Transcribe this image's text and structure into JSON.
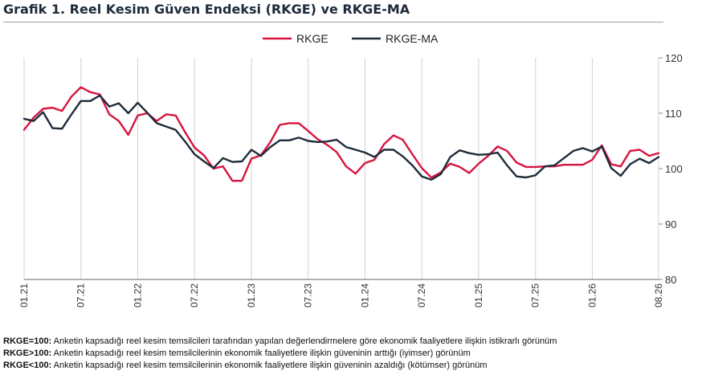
{
  "title": "Grafik 1. Reel Kesim Güven Endeksi (RKGE) ve RKGE-MA",
  "chart_data": {
    "type": "line",
    "x_ticks": [
      "01.21",
      "07.21",
      "01.22",
      "07.22",
      "01.23",
      "07.23",
      "01.24",
      "07.24",
      "01.25",
      "07.25",
      "01.26",
      "08.26"
    ],
    "ylim": [
      80,
      120
    ],
    "y_ticks": [
      80,
      90,
      100,
      110,
      120
    ],
    "y_axis_position": "right",
    "grid": "vertical",
    "legend_position": "top-center",
    "series": [
      {
        "name": "RKGE",
        "color": "#d7143f",
        "values": [
          107.0,
          109.2,
          110.8,
          111.0,
          110.4,
          113.0,
          114.7,
          113.8,
          113.4,
          109.8,
          108.6,
          106.1,
          109.6,
          110.0,
          108.6,
          109.8,
          109.6,
          106.6,
          103.8,
          102.4,
          100.0,
          100.4,
          97.8,
          97.8,
          101.8,
          102.4,
          104.8,
          107.9,
          108.2,
          108.2,
          106.8,
          105.3,
          104.3,
          103.0,
          100.4,
          99.1,
          101.0,
          101.6,
          104.4,
          106.0,
          105.2,
          102.6,
          100.1,
          98.4,
          99.3,
          100.9,
          100.3,
          99.2,
          100.9,
          102.3,
          104.0,
          103.2,
          101.1,
          100.3,
          100.3,
          100.4,
          100.4,
          100.7,
          100.7,
          100.7,
          101.6,
          104.2,
          100.8,
          100.4,
          103.2,
          103.4,
          102.3,
          102.8
        ]
      },
      {
        "name": "RKGE-MA",
        "color": "#1e2b3a",
        "values": [
          109.0,
          108.6,
          110.2,
          107.3,
          107.2,
          109.8,
          112.2,
          112.2,
          113.2,
          111.2,
          111.8,
          110.0,
          111.9,
          110.1,
          108.2,
          107.6,
          107.0,
          104.9,
          102.6,
          101.3,
          100.1,
          101.9,
          101.2,
          101.3,
          103.4,
          102.3,
          103.9,
          105.1,
          105.1,
          105.6,
          105.0,
          104.8,
          104.9,
          105.2,
          103.9,
          103.4,
          102.9,
          102.1,
          103.4,
          103.4,
          102.2,
          100.6,
          98.6,
          98.0,
          99.0,
          102.1,
          103.3,
          102.8,
          102.5,
          102.6,
          102.9,
          100.6,
          98.6,
          98.4,
          98.8,
          100.4,
          100.6,
          101.9,
          103.2,
          103.7,
          103.1,
          104.0,
          100.1,
          98.7,
          100.8,
          101.8,
          101.0,
          102.1
        ]
      }
    ]
  },
  "notes": [
    {
      "label": "RKGE=100:",
      "text": " Anketin kapsadığı reel kesim temsilcileri tarafından yapılan değerlendirmelere göre ekonomik faaliyetlere ilişkin istikrarlı görünüm"
    },
    {
      "label": "RKGE>100:",
      "text": " Anketin kapsadığı reel kesim temsilcilerinin ekonomik faaliyetlere ilişkin güveninin arttığı (iyimser) görünüm"
    },
    {
      "label": "RKGE<100:",
      "text": " Anketin kapsadığı reel kesim temsilcilerinin ekonomik faaliyetlere ilişkin güveninin azaldığı (kötümser) görünüm"
    }
  ]
}
